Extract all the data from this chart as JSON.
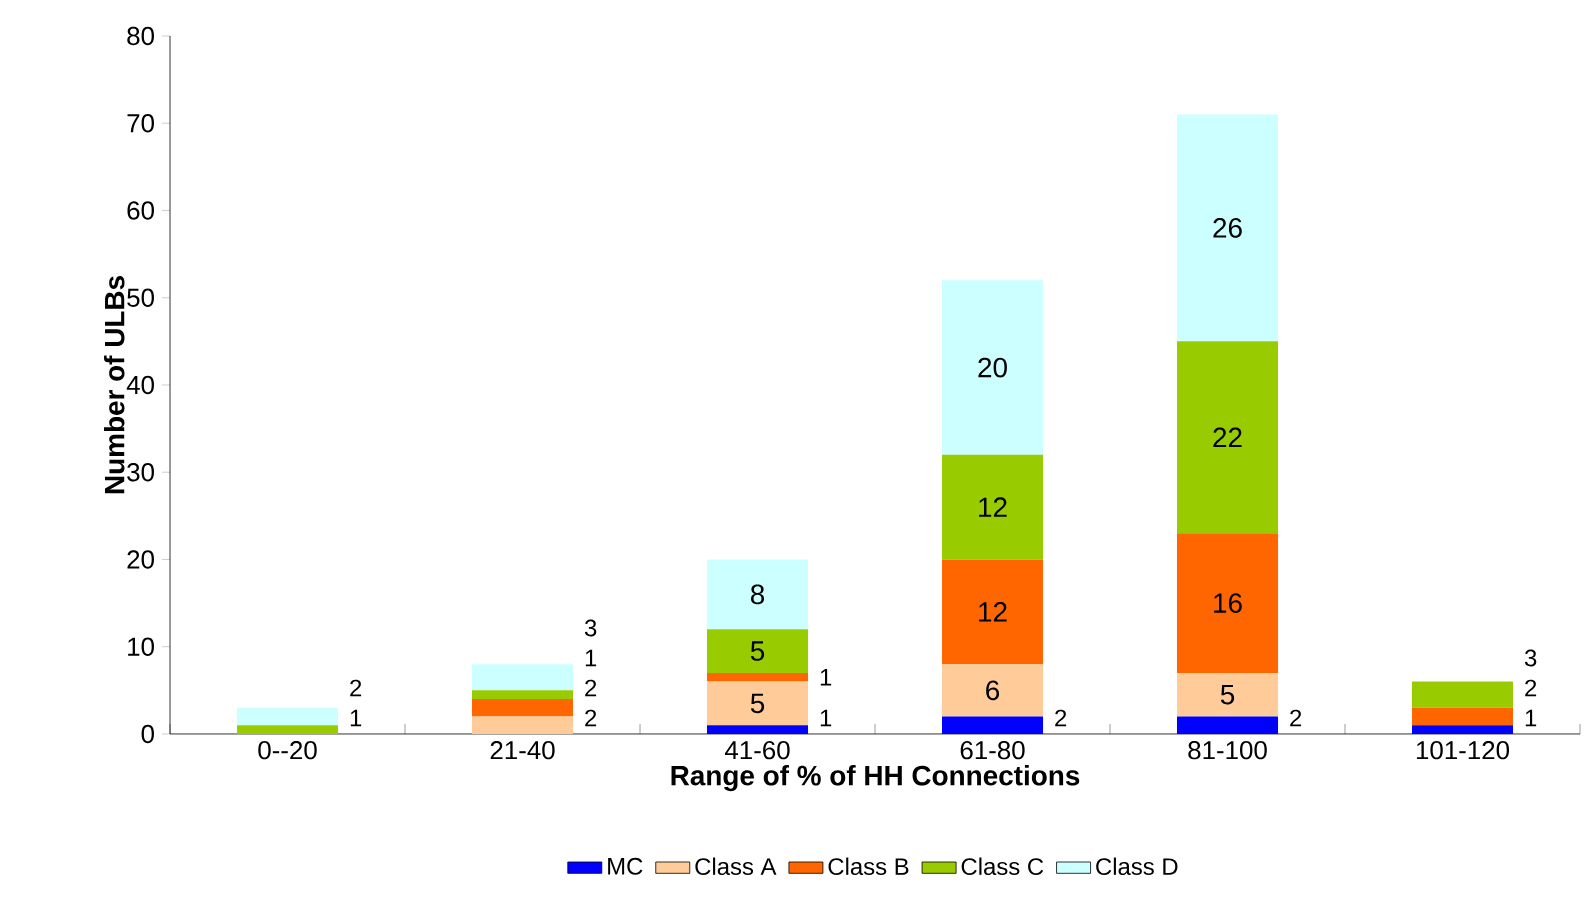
{
  "chart_data": {
    "type": "bar",
    "stacked": true,
    "xlabel": "Range of % of HH Connections",
    "ylabel": "Number of ULBs",
    "categories": [
      "0--20",
      "21-40",
      "41-60",
      "61-80",
      "81-100",
      "101-120"
    ],
    "series": [
      {
        "name": "MC",
        "color": "#0000ff",
        "values": [
          null,
          null,
          1,
          2,
          2,
          1
        ]
      },
      {
        "name": "Class A",
        "color": "#ffcc99",
        "values": [
          null,
          2,
          5,
          6,
          5,
          null
        ]
      },
      {
        "name": "Class B",
        "color": "#ff6600",
        "values": [
          null,
          2,
          1,
          12,
          16,
          2
        ]
      },
      {
        "name": "Class C",
        "color": "#99cc00",
        "values": [
          1,
          1,
          5,
          12,
          22,
          3
        ]
      },
      {
        "name": "Class D",
        "color": "#ccffff",
        "values": [
          2,
          3,
          8,
          20,
          26,
          null
        ]
      }
    ],
    "ylim": [
      0,
      80
    ],
    "yticks": [
      0,
      10,
      20,
      30,
      40,
      50,
      60,
      70,
      80
    ],
    "data_labels": true,
    "legend": "bottom"
  }
}
